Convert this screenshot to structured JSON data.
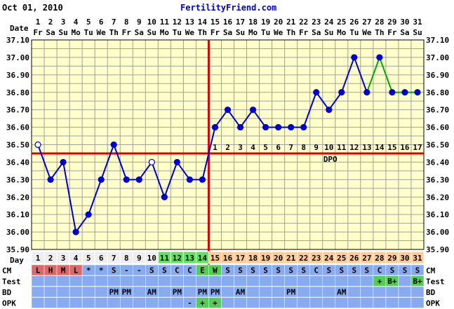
{
  "header": {
    "date_text": "Oct 01, 2010",
    "site": "FertilityFriend.com",
    "date_label": "Date",
    "day_label": "Day"
  },
  "colors": {
    "background": "#ffffff",
    "plot_bg": "#ffffcc",
    "grid": "#a0a0a0",
    "line": "#0000cc",
    "line_green": "#00aa00",
    "coverline": "#dd0000",
    "cd_normal": "#eeeeee",
    "cd_green": "#66dd66",
    "cd_orange": "#ffcc99",
    "row_blue": "#88aaee",
    "cm_red": "#dd6666",
    "cm_green": "#55cc55",
    "test_green": "#55cc55",
    "opk_green": "#55cc55"
  },
  "chart_data": {
    "type": "line",
    "title": "",
    "ylabel": "",
    "xlabel": "",
    "ylim": [
      35.9,
      37.1
    ],
    "y_ticks": [
      "35.90",
      "36.00",
      "36.10",
      "36.20",
      "36.30",
      "36.40",
      "36.50",
      "36.60",
      "36.70",
      "36.80",
      "36.90",
      "37.00",
      "37.10"
    ],
    "dates": [
      "1",
      "2",
      "3",
      "4",
      "5",
      "6",
      "7",
      "8",
      "9",
      "10",
      "11",
      "12",
      "13",
      "14",
      "15",
      "16",
      "17",
      "18",
      "19",
      "20",
      "21",
      "22",
      "23",
      "24",
      "25",
      "26",
      "27",
      "28",
      "29",
      "30",
      "31"
    ],
    "weekdays": [
      "Fr",
      "Sa",
      "Su",
      "Mo",
      "Tu",
      "We",
      "Th",
      "Fr",
      "Sa",
      "Su",
      "Mo",
      "Tu",
      "We",
      "Th",
      "Fr",
      "Sa",
      "Su",
      "Mo",
      "Tu",
      "We",
      "Th",
      "Fr",
      "Sa",
      "Su",
      "Mo",
      "Tu",
      "We",
      "Th",
      "Fr",
      "Sa",
      "Su"
    ],
    "cycle_days": [
      "1",
      "2",
      "3",
      "4",
      "5",
      "6",
      "7",
      "8",
      "9",
      "10",
      "11",
      "12",
      "13",
      "14",
      "15",
      "16",
      "17",
      "18",
      "19",
      "20",
      "21",
      "22",
      "23",
      "24",
      "25",
      "26",
      "27",
      "28",
      "29",
      "30",
      "31"
    ],
    "temps": [
      36.5,
      36.3,
      36.4,
      36.0,
      36.1,
      36.3,
      36.5,
      36.3,
      36.3,
      36.4,
      36.2,
      36.4,
      36.3,
      36.3,
      36.6,
      36.7,
      36.6,
      36.7,
      36.6,
      36.6,
      36.6,
      36.6,
      36.8,
      36.7,
      36.8,
      37.0,
      36.8,
      37.0,
      36.8,
      36.8,
      36.8
    ],
    "open_circle_days": [
      1,
      10
    ],
    "green_segment_from_day": 27,
    "coverline_temp": 36.45,
    "ovulation_day": 14,
    "dpo_label": "DPO",
    "dpo_numbers": [
      "1",
      "2",
      "3",
      "4",
      "5",
      "6",
      "7",
      "8",
      "9",
      "10",
      "11",
      "12",
      "13",
      "14",
      "15",
      "16",
      "17"
    ],
    "cd_green_days": [
      11,
      12,
      13,
      14
    ],
    "cd_orange_from_day": 15
  },
  "rows": [
    {
      "label": "CM",
      "values": [
        "L",
        "H",
        "M",
        "L",
        "*",
        "*",
        "S",
        "-",
        "-",
        "S",
        "S",
        "C",
        "C",
        "E",
        "W",
        "S",
        "S",
        "S",
        "S",
        "S",
        "S",
        "S",
        "C",
        "S",
        "S",
        "S",
        "S",
        "C",
        "S",
        "S",
        "S"
      ]
    },
    {
      "label": "Test",
      "values": [
        "",
        "",
        "",
        "",
        "",
        "",
        "",
        "",
        "",
        "",
        "",
        "",
        "",
        "",
        "",
        "",
        "",
        "",
        "",
        "",
        "",
        "",
        "",
        "",
        "",
        "",
        "",
        "+",
        "B+",
        "",
        "B+"
      ]
    },
    {
      "label": "BD",
      "values": [
        "",
        "",
        "",
        "",
        "",
        "",
        "PM",
        "PM",
        "",
        "AM",
        "",
        "PM",
        "",
        "PM",
        "PM",
        "",
        "AM",
        "",
        "",
        "",
        "PM",
        "",
        "",
        "",
        "AM",
        "",
        "",
        "",
        "",
        "",
        ""
      ]
    },
    {
      "label": "OPK",
      "values": [
        "",
        "",
        "",
        "",
        "",
        "",
        "",
        "",
        "",
        "",
        "",
        "",
        "-",
        "+",
        "+",
        "",
        "",
        "",
        "",
        "",
        "",
        "",
        "",
        "",
        "",
        "",
        "",
        "",
        "",
        "",
        ""
      ]
    }
  ],
  "cm_colored": {
    "1": "cm_red",
    "2": "cm_red",
    "3": "cm_red",
    "4": "cm_red",
    "14": "cm_green",
    "15": "cm_green"
  },
  "test_colored": [
    28,
    29,
    31
  ],
  "opk_colored": [
    14,
    15
  ]
}
